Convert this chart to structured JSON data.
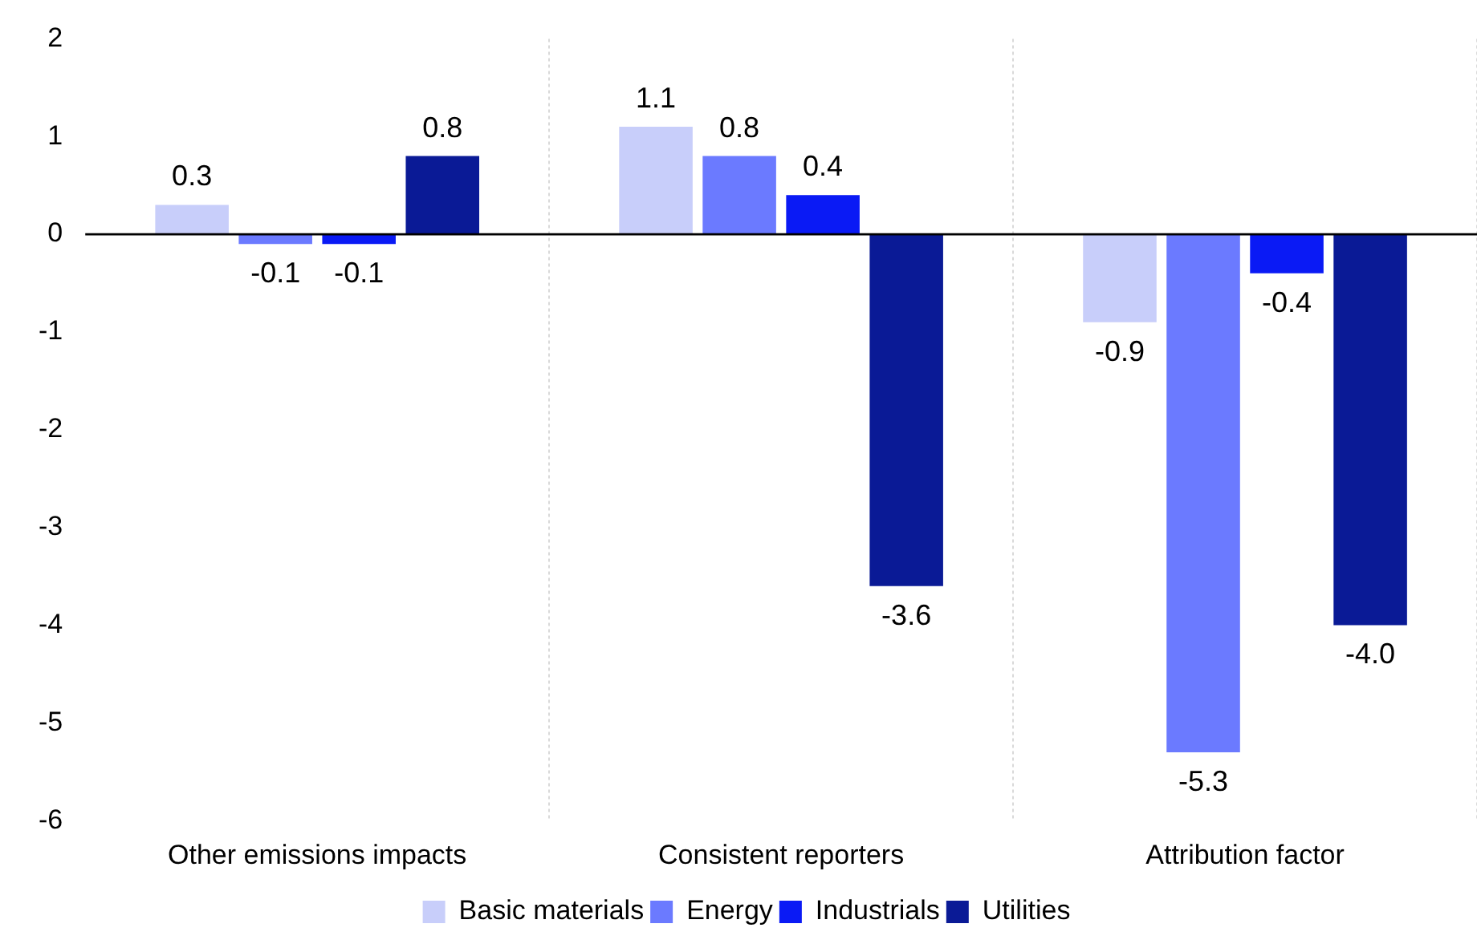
{
  "chart_data": {
    "type": "bar",
    "categories": [
      "Other emissions impacts",
      "Consistent reporters",
      "Attribution factor"
    ],
    "series": [
      {
        "name": "Basic materials",
        "color": "#c8cefa",
        "values": [
          0.3,
          1.1,
          -0.9
        ],
        "value_labels": [
          "0.3",
          "1.1",
          "-0.9"
        ]
      },
      {
        "name": "Energy",
        "color": "#6b7aff",
        "values": [
          -0.1,
          0.8,
          -5.3
        ],
        "value_labels": [
          "-0.1",
          "0.8",
          "-5.3"
        ]
      },
      {
        "name": "Industrials",
        "color": "#0a1af5",
        "values": [
          -0.1,
          0.4,
          -0.4
        ],
        "value_labels": [
          "-0.1",
          "0.4",
          "-0.4"
        ]
      },
      {
        "name": "Utilities",
        "color": "#0a1a96",
        "values": [
          0.8,
          -3.6,
          -4.0
        ],
        "value_labels": [
          "0.8",
          "-3.6",
          "-4.0"
        ]
      }
    ],
    "ylim": [
      -6,
      2
    ],
    "yticks": [
      -6,
      -5,
      -4,
      -3,
      -2,
      -1,
      0,
      1,
      2
    ],
    "grid": "x",
    "legend": "bottom"
  }
}
